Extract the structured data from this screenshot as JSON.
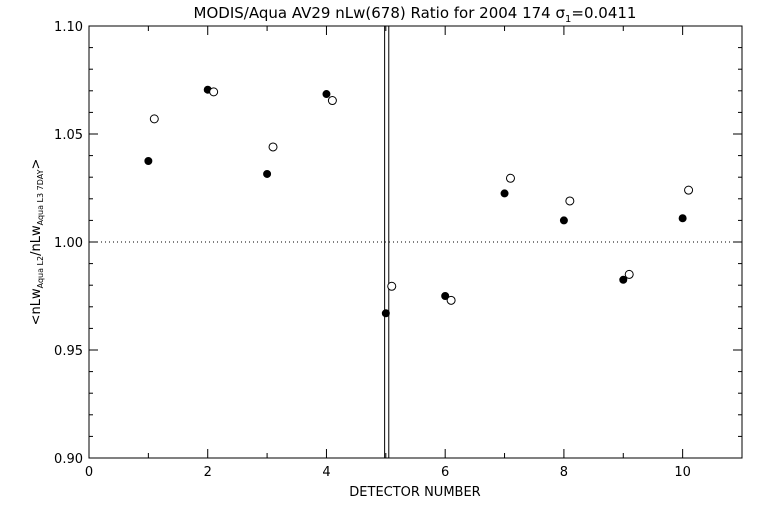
{
  "chart_data": {
    "type": "scatter",
    "title": "MODIS/Aqua AV29 nLw(678) Ratio for 2004 174 σ",
    "title_subscript": "1",
    "title_suffix": "=0.0411",
    "xlabel": "DETECTOR NUMBER",
    "ylabel": {
      "prefix": "<nLw",
      "sub1": "Aqua L2",
      "middle": "/nLw",
      "sub2": "Aqua L3 7DAY",
      "suffix": ">"
    },
    "xlim": [
      0,
      11
    ],
    "ylim": [
      0.9,
      1.1
    ],
    "x_ticks": [
      0,
      2,
      4,
      6,
      8,
      10
    ],
    "x_tick_labels": [
      "0",
      "2",
      "4",
      "6",
      "8",
      "10"
    ],
    "y_ticks": [
      0.9,
      0.95,
      1.0,
      1.05,
      1.1
    ],
    "y_tick_labels": [
      "0.90",
      "0.95",
      "1.00",
      "1.05",
      "1.10"
    ],
    "reference_line_y": 1.0,
    "vertical_lines_x": [
      4.98,
      5.05
    ],
    "series": [
      {
        "marker": "filled-circle",
        "x": [
          1,
          2,
          3,
          4,
          5,
          6,
          7,
          8,
          9,
          10
        ],
        "y": [
          1.0375,
          1.0705,
          1.0315,
          1.0685,
          0.967,
          0.975,
          1.0225,
          1.01,
          0.9825,
          1.011
        ]
      },
      {
        "marker": "open-circle",
        "x": [
          1.1,
          2.1,
          3.1,
          4.1,
          5.1,
          6.1,
          7.1,
          8.1,
          9.1,
          10.1
        ],
        "y": [
          1.057,
          1.0695,
          1.044,
          1.0655,
          0.9795,
          0.973,
          1.0295,
          1.019,
          0.985,
          1.024
        ]
      }
    ],
    "grid": false,
    "colors": {
      "axes": "#000000",
      "marker": "#000000",
      "background": "#ffffff"
    }
  }
}
